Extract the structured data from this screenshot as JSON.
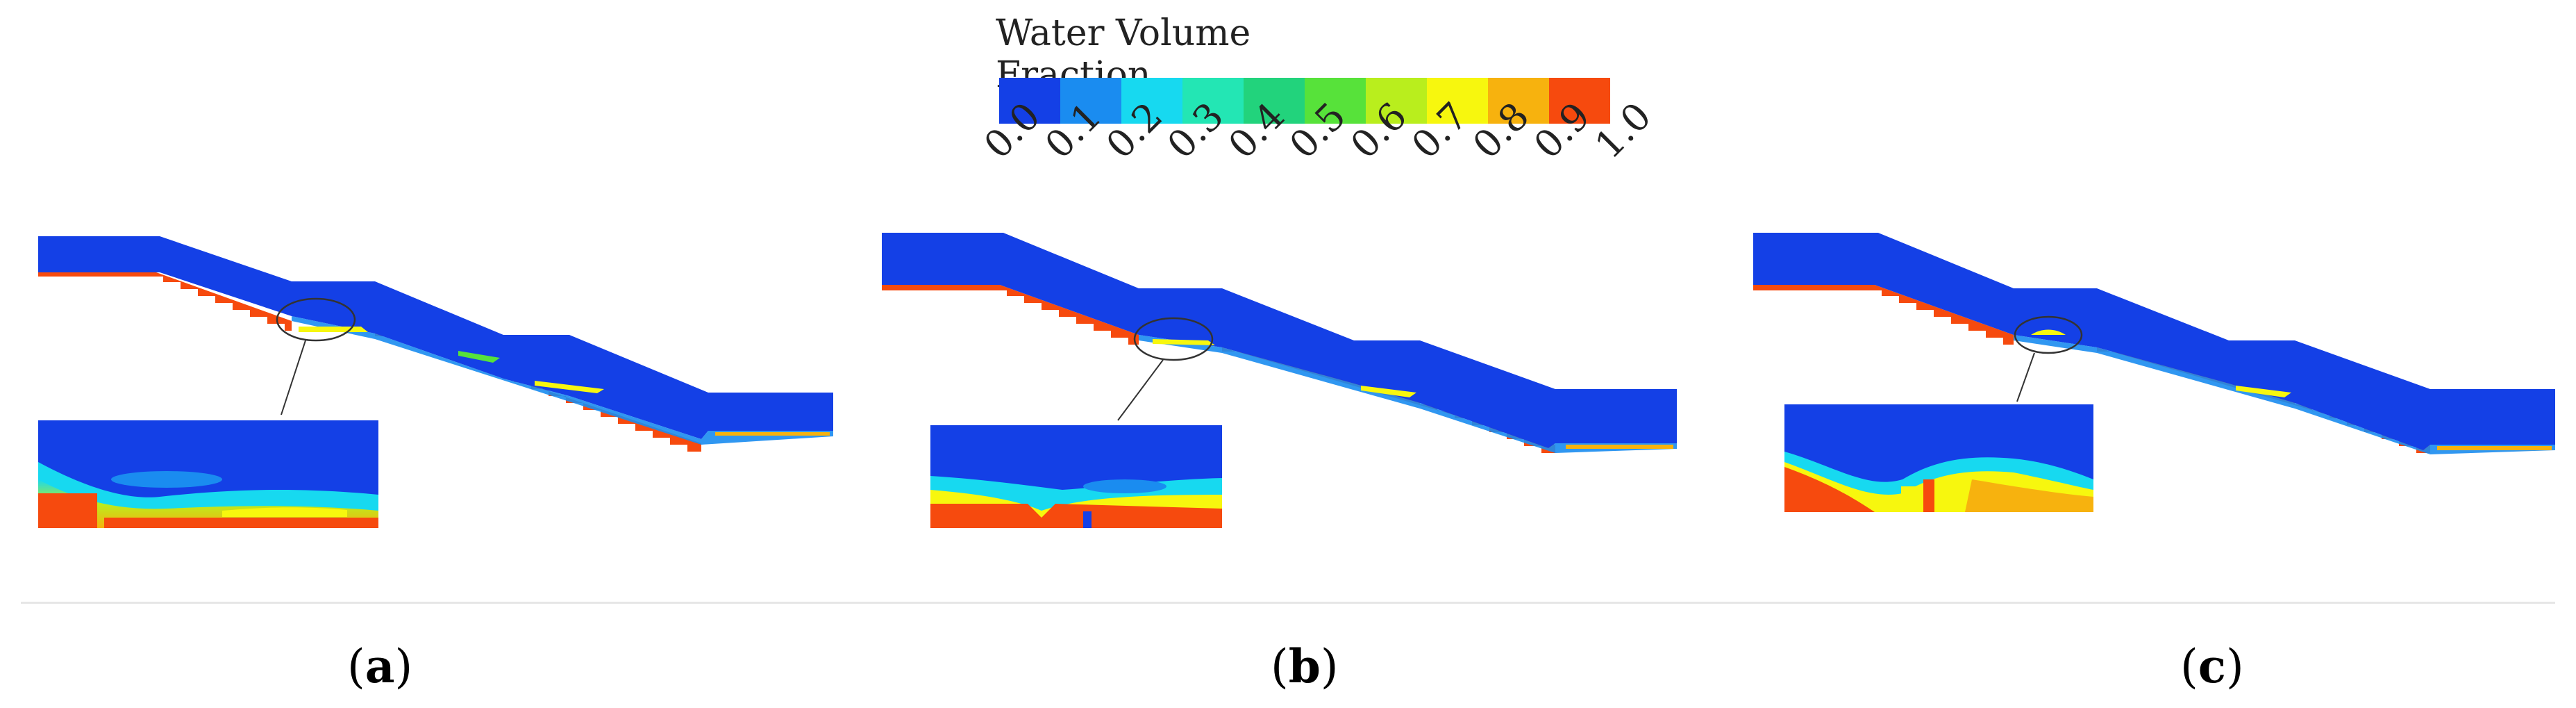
{
  "legend": {
    "title": "Water Volume Fraction",
    "ticks": [
      "0.0",
      "0.1",
      "0.2",
      "0.3",
      "0.4",
      "0.5",
      "0.6",
      "0.7",
      "0.8",
      "0.9",
      "1.0"
    ],
    "colors": [
      "#1440e6",
      "#1a8cf0",
      "#17d9f0",
      "#23e6b4",
      "#22d37c",
      "#57e23a",
      "#b9ee1d",
      "#f7f70e",
      "#f7b20e",
      "#f64a0e"
    ]
  },
  "panels": [
    {
      "label_open": "(",
      "label": "a",
      "label_close": ")"
    },
    {
      "label_open": "(",
      "label": "b",
      "label_close": ")"
    },
    {
      "label_open": "(",
      "label": "c",
      "label_close": ")"
    }
  ]
}
